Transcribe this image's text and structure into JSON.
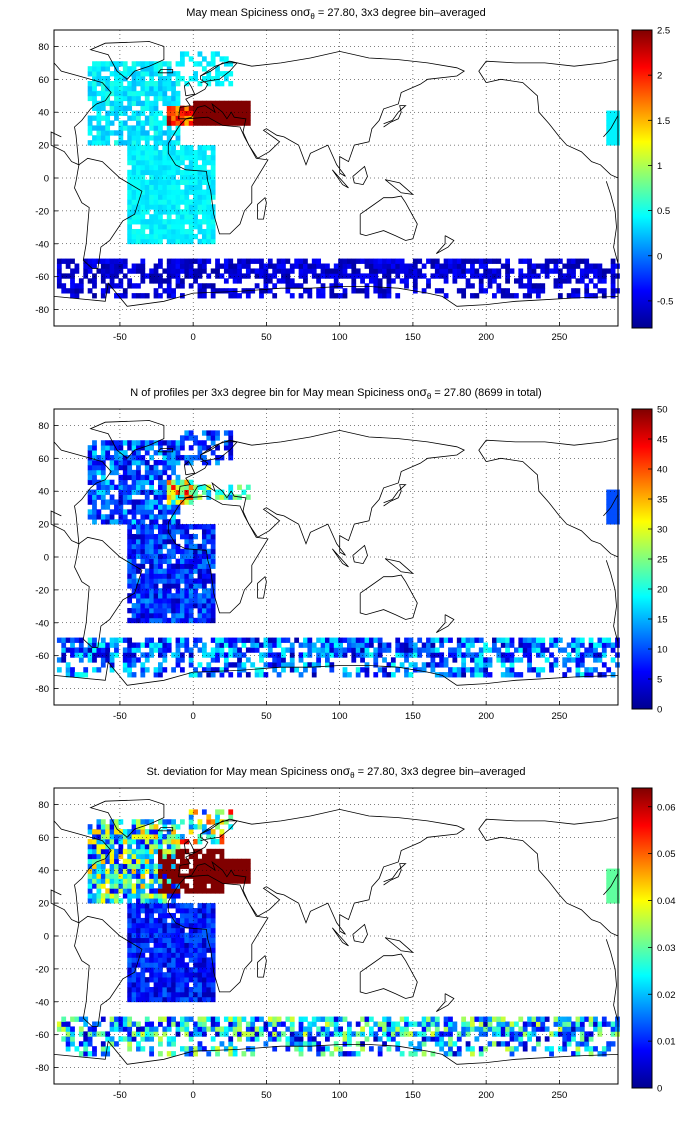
{
  "panels": [
    {
      "title_pre": "May mean Spiciness on",
      "title_sigma": "σ",
      "title_sub": "θ",
      "title_post": " = 27.80, 3x3 degree bin–averaged",
      "cbar_ticks": [
        "2.5",
        "2",
        "1.5",
        "1",
        "0.5",
        "0",
        "-0.5"
      ],
      "cbar_min": -0.8,
      "cbar_max": 2.5
    },
    {
      "title_pre": "N of profiles per 3x3 degree bin for May mean Spiciness on",
      "title_sigma": "σ",
      "title_sub": "θ",
      "title_post": " = 27.80 (8699 in total)",
      "cbar_ticks": [
        "50",
        "45",
        "40",
        "35",
        "30",
        "25",
        "20",
        "15",
        "10",
        "5",
        "0"
      ],
      "cbar_min": 0,
      "cbar_max": 50
    },
    {
      "title_pre": "St. deviation for May mean Spiciness on",
      "title_sigma": "σ",
      "title_sub": "θ",
      "title_post": " = 27.80, 3x3 degree bin–averaged",
      "cbar_ticks": [
        "0.06",
        "0.05",
        "0.04",
        "0.03",
        "0.02",
        "0.01",
        "0"
      ],
      "cbar_min": 0,
      "cbar_max": 0.064
    }
  ],
  "x_ticks": [
    "-50",
    "0",
    "50",
    "100",
    "150",
    "200",
    "250"
  ],
  "y_ticks": [
    "80",
    "60",
    "40",
    "20",
    "0",
    "-20",
    "-40",
    "-60",
    "-80"
  ],
  "chart_data": [
    {
      "type": "heatmap",
      "title": "May mean Spiciness on σθ = 27.80, 3x3 degree bin–averaged",
      "xlim": [
        -95,
        290
      ],
      "ylim": [
        -90,
        90
      ],
      "colorbar_range": [
        -0.8,
        2.5
      ],
      "colormap": "jet",
      "grid": true,
      "regions": [
        {
          "lon": [
            -70,
            -10
          ],
          "lat": [
            20,
            70
          ],
          "value": 0.35
        },
        {
          "lon": [
            -45,
            10
          ],
          "lat": [
            -40,
            20
          ],
          "value": 0.35
        },
        {
          "lon": [
            -15,
            -5
          ],
          "lat": [
            30,
            42
          ],
          "value": 1.6
        },
        {
          "lon": [
            0,
            35
          ],
          "lat": [
            30,
            45
          ],
          "value": 2.5
        },
        {
          "lon": [
            -95,
            290
          ],
          "lat": [
            -75,
            -50
          ],
          "value": -0.55
        }
      ]
    },
    {
      "type": "heatmap",
      "title": "N of profiles per 3x3 degree bin for May mean Spiciness on σθ = 27.80 (8699 in total)",
      "xlim": [
        -95,
        290
      ],
      "ylim": [
        -90,
        90
      ],
      "colorbar_range": [
        0,
        50
      ],
      "colormap": "jet",
      "grid": true,
      "regions": [
        {
          "lon": [
            -70,
            -10
          ],
          "lat": [
            20,
            70
          ],
          "value": 8
        },
        {
          "lon": [
            -45,
            10
          ],
          "lat": [
            -40,
            20
          ],
          "value": 6
        },
        {
          "lon": [
            -15,
            30
          ],
          "lat": [
            35,
            42
          ],
          "value": 30
        },
        {
          "lon": [
            -95,
            290
          ],
          "lat": [
            -75,
            -50
          ],
          "value": 10
        }
      ]
    },
    {
      "type": "heatmap",
      "title": "St. deviation for May mean Spiciness on σθ = 27.80, 3x3 degree bin–averaged",
      "xlim": [
        -95,
        290
      ],
      "ylim": [
        -90,
        90
      ],
      "colorbar_range": [
        0,
        0.064
      ],
      "colormap": "jet",
      "grid": true,
      "regions": [
        {
          "lon": [
            -70,
            -10
          ],
          "lat": [
            20,
            70
          ],
          "value": 0.02
        },
        {
          "lon": [
            -30,
            30
          ],
          "lat": [
            25,
            50
          ],
          "value": 0.064
        },
        {
          "lon": [
            -45,
            10
          ],
          "lat": [
            -40,
            20
          ],
          "value": 0.008
        },
        {
          "lon": [
            -95,
            290
          ],
          "lat": [
            -75,
            -50
          ],
          "value": 0.012
        }
      ]
    }
  ]
}
